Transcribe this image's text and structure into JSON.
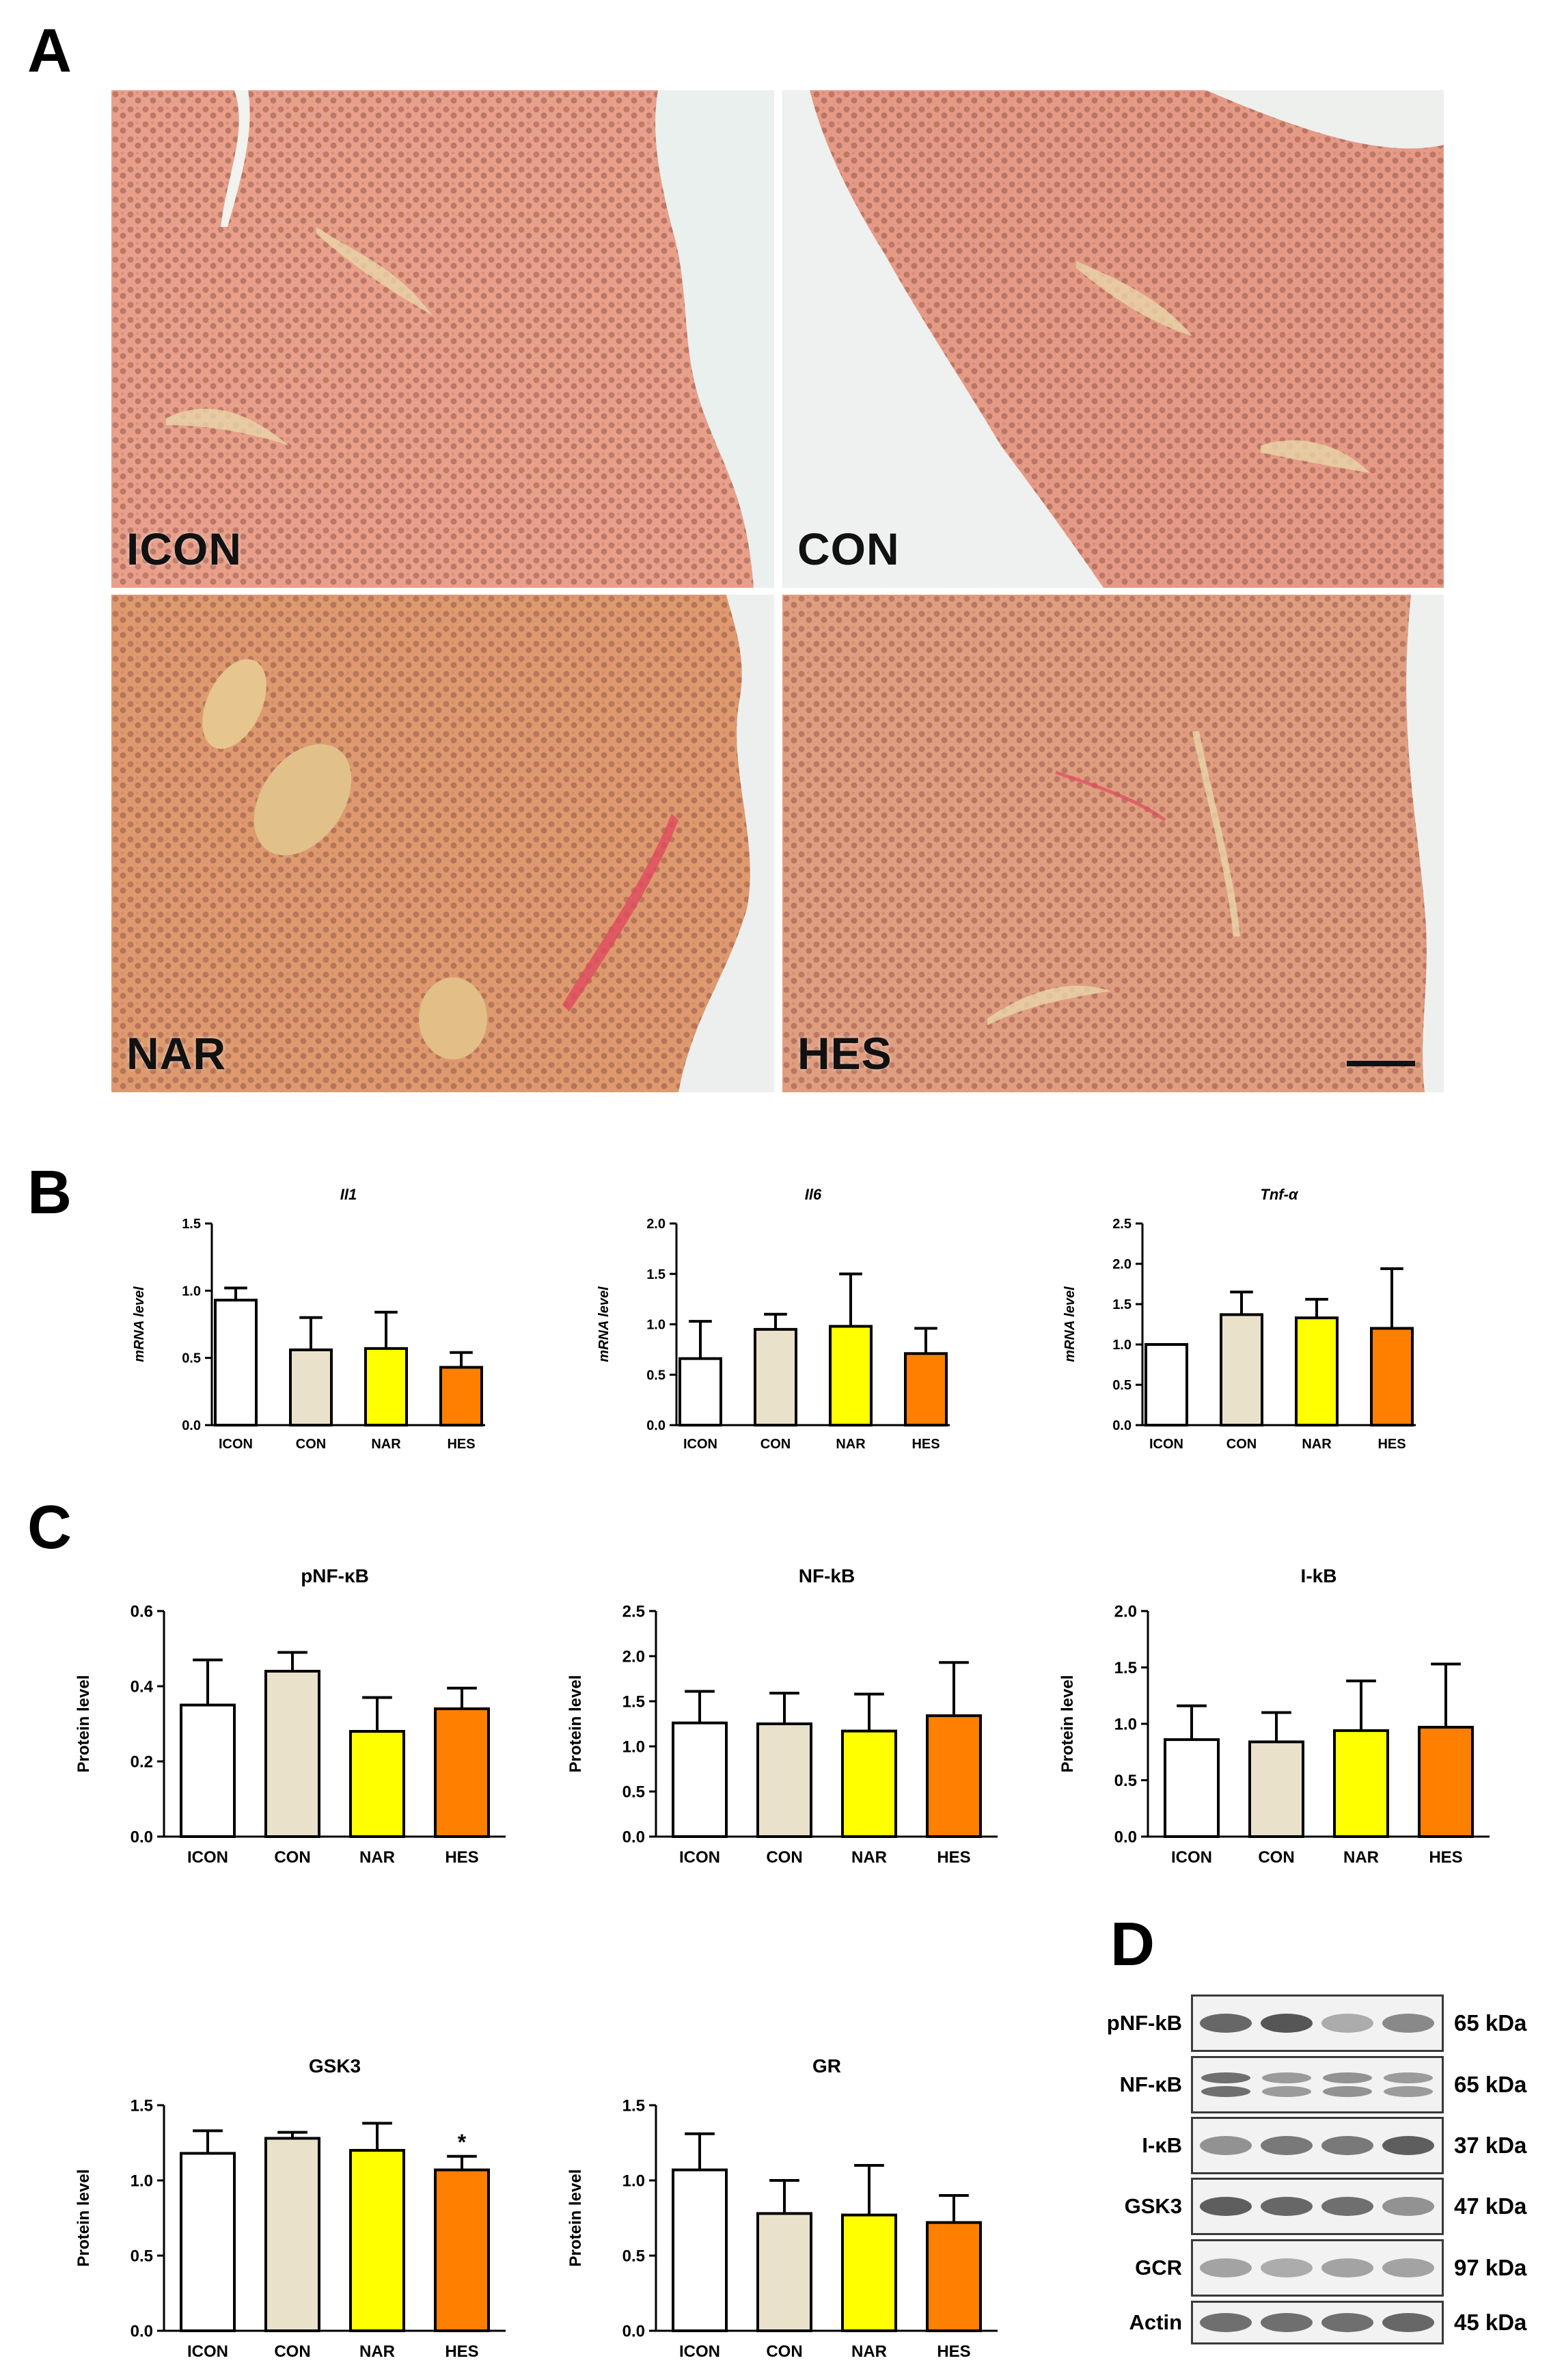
{
  "panels": {
    "a": "A",
    "b": "B",
    "c": "C",
    "d": "D"
  },
  "panel_a": {
    "images": [
      {
        "label": "ICON",
        "tint": "#e8a08a"
      },
      {
        "label": "CON",
        "tint": "#e59a86"
      },
      {
        "label": "NAR",
        "tint": "#de9a6e"
      },
      {
        "label": "HES",
        "tint": "#e09e80"
      }
    ]
  },
  "colors": {
    "ICON": "#ffffff",
    "CON": "#e9e1c9",
    "NAR": "#ffff00",
    "HES": "#ff7f00"
  },
  "chart_data": [
    {
      "id": "il1",
      "type": "bar",
      "title": "Il1",
      "title_italic": true,
      "ylabel": "mRNA level",
      "ylabel_italic": true,
      "categories": [
        "ICON",
        "CON",
        "NAR",
        "HES"
      ],
      "values": [
        0.93,
        0.56,
        0.57,
        0.43
      ],
      "errors": [
        0.09,
        0.24,
        0.27,
        0.11
      ],
      "ylim": [
        0,
        1.5
      ],
      "yticks": [
        "0.0",
        "0.5",
        "1.0",
        "1.5"
      ],
      "annotations": [
        "",
        "",
        "",
        ""
      ]
    },
    {
      "id": "il6",
      "type": "bar",
      "title": "Il6",
      "title_italic": true,
      "ylabel": "mRNA level",
      "ylabel_italic": true,
      "categories": [
        "ICON",
        "CON",
        "NAR",
        "HES"
      ],
      "values": [
        0.66,
        0.95,
        0.98,
        0.71
      ],
      "errors": [
        0.37,
        0.15,
        0.52,
        0.25
      ],
      "ylim": [
        0,
        2.0
      ],
      "yticks": [
        "0.0",
        "0.5",
        "1.0",
        "1.5",
        "2.0"
      ],
      "annotations": [
        "",
        "",
        "",
        ""
      ]
    },
    {
      "id": "tnfa",
      "type": "bar",
      "title": "Tnf-α",
      "title_italic": true,
      "ylabel": "mRNA level",
      "ylabel_italic": true,
      "categories": [
        "ICON",
        "CON",
        "NAR",
        "HES"
      ],
      "values": [
        1.0,
        1.37,
        1.33,
        1.2
      ],
      "errors": [
        0.0,
        0.28,
        0.23,
        0.74
      ],
      "ylim": [
        0,
        2.5
      ],
      "yticks": [
        "0.0",
        "0.5",
        "1.0",
        "1.5",
        "2.0",
        "2.5"
      ],
      "annotations": [
        "",
        "",
        "",
        ""
      ]
    },
    {
      "id": "pnfkb",
      "type": "bar",
      "title": "pNF-κB",
      "title_italic": false,
      "ylabel": "Protein level",
      "ylabel_italic": false,
      "categories": [
        "ICON",
        "CON",
        "NAR",
        "HES"
      ],
      "values": [
        0.35,
        0.44,
        0.28,
        0.34
      ],
      "errors": [
        0.12,
        0.05,
        0.09,
        0.055
      ],
      "ylim": [
        0,
        0.6
      ],
      "yticks": [
        "0.0",
        "0.2",
        "0.4",
        "0.6"
      ],
      "annotations": [
        "",
        "",
        "",
        ""
      ]
    },
    {
      "id": "nfkb",
      "type": "bar",
      "title": "NF-kB",
      "title_italic": false,
      "ylabel": "Protein level",
      "ylabel_italic": false,
      "categories": [
        "ICON",
        "CON",
        "NAR",
        "HES"
      ],
      "values": [
        1.26,
        1.25,
        1.17,
        1.34
      ],
      "errors": [
        0.35,
        0.34,
        0.41,
        0.59
      ],
      "ylim": [
        0,
        2.5
      ],
      "yticks": [
        "0.0",
        "0.5",
        "1.0",
        "1.5",
        "2.0",
        "2.5"
      ],
      "annotations": [
        "",
        "",
        "",
        ""
      ]
    },
    {
      "id": "ikb",
      "type": "bar",
      "title": "I-kB",
      "title_italic": false,
      "ylabel": "Protein level",
      "ylabel_italic": false,
      "categories": [
        "ICON",
        "CON",
        "NAR",
        "HES"
      ],
      "values": [
        0.86,
        0.84,
        0.94,
        0.97
      ],
      "errors": [
        0.3,
        0.26,
        0.44,
        0.56
      ],
      "ylim": [
        0,
        2.0
      ],
      "yticks": [
        "0.0",
        "0.5",
        "1.0",
        "1.5",
        "2.0"
      ],
      "annotations": [
        "",
        "",
        "",
        ""
      ]
    },
    {
      "id": "gsk3",
      "type": "bar",
      "title": "GSK3",
      "title_italic": false,
      "ylabel": "Protein level",
      "ylabel_italic": false,
      "categories": [
        "ICON",
        "CON",
        "NAR",
        "HES"
      ],
      "values": [
        1.18,
        1.28,
        1.2,
        1.07
      ],
      "errors": [
        0.15,
        0.04,
        0.18,
        0.09
      ],
      "ylim": [
        0,
        1.5
      ],
      "yticks": [
        "0.0",
        "0.5",
        "1.0",
        "1.5"
      ],
      "annotations": [
        "",
        "",
        "",
        "*"
      ]
    },
    {
      "id": "gr",
      "type": "bar",
      "title": "GR",
      "title_italic": false,
      "ylabel": "Protein level",
      "ylabel_italic": false,
      "categories": [
        "ICON",
        "CON",
        "NAR",
        "HES"
      ],
      "values": [
        1.07,
        0.78,
        0.77,
        0.72
      ],
      "errors": [
        0.24,
        0.22,
        0.33,
        0.18
      ],
      "ylim": [
        0,
        1.5
      ],
      "yticks": [
        "0.0",
        "0.5",
        "1.0",
        "1.5"
      ],
      "annotations": [
        "",
        "",
        "",
        ""
      ]
    }
  ],
  "western_blot": {
    "rows": [
      {
        "protein": "pNF-kB",
        "kda": "65 kDa",
        "intensity": [
          0.75,
          0.85,
          0.35,
          0.55
        ],
        "double": false
      },
      {
        "protein": "NF-κB",
        "kda": "65 kDa",
        "intensity": [
          0.7,
          0.45,
          0.5,
          0.45
        ],
        "double": true
      },
      {
        "protein": "I-κB",
        "kda": "37 kDa",
        "intensity": [
          0.5,
          0.65,
          0.65,
          0.8
        ],
        "double": false
      },
      {
        "protein": "GSK3",
        "kda": "47 kDa",
        "intensity": [
          0.8,
          0.75,
          0.7,
          0.5
        ],
        "double": false
      },
      {
        "protein": "GCR",
        "kda": "97 kDa",
        "intensity": [
          0.4,
          0.35,
          0.4,
          0.4
        ],
        "double": false
      },
      {
        "protein": "Actin",
        "kda": "45 kDa",
        "intensity": [
          0.7,
          0.7,
          0.7,
          0.75
        ],
        "double": false
      }
    ]
  }
}
